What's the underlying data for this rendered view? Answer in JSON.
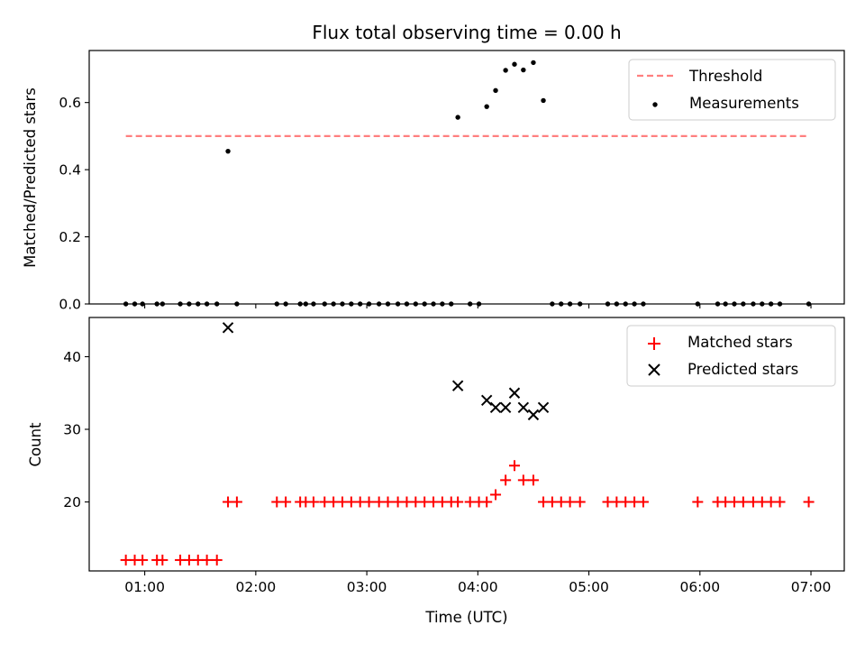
{
  "title": "Flux total observing time = 0.00 h",
  "chart_data": [
    {
      "type": "scatter",
      "ylabel": "Matched/Predicted stars",
      "xlim": [
        0.5,
        7.3
      ],
      "ylim": [
        0.0,
        0.755
      ],
      "xticks": [
        1,
        2,
        3,
        4,
        5,
        6,
        7
      ],
      "yticks": [
        0.0,
        0.2,
        0.4,
        0.6
      ],
      "ytick_labels": [
        "0.0",
        "0.2",
        "0.4",
        "0.6"
      ],
      "legend_position": "top-right",
      "threshold": {
        "name": "Threshold",
        "y": 0.5,
        "x_range": [
          0.83,
          6.97
        ],
        "color": "#ff7f7f"
      },
      "measurements": {
        "name": "Measurements",
        "color": "#000000",
        "x": [
          0.83,
          0.91,
          0.98,
          1.11,
          1.16,
          1.32,
          1.4,
          1.48,
          1.56,
          1.65,
          1.75,
          1.83,
          2.19,
          2.27,
          2.4,
          2.45,
          2.52,
          2.62,
          2.7,
          2.78,
          2.86,
          2.94,
          3.02,
          3.11,
          3.19,
          3.28,
          3.36,
          3.44,
          3.52,
          3.6,
          3.68,
          3.76,
          3.82,
          3.93,
          4.01,
          4.08,
          4.16,
          4.25,
          4.33,
          4.41,
          4.5,
          4.59,
          4.67,
          4.75,
          4.83,
          4.92,
          5.17,
          5.25,
          5.33,
          5.41,
          5.49,
          5.98,
          6.16,
          6.23,
          6.31,
          6.39,
          6.48,
          6.56,
          6.64,
          6.72,
          6.98
        ],
        "y": [
          0,
          0,
          0,
          0,
          0,
          0,
          0,
          0,
          0,
          0,
          0.455,
          0,
          0,
          0,
          0,
          0,
          0,
          0,
          0,
          0,
          0,
          0,
          0,
          0,
          0,
          0,
          0,
          0,
          0,
          0,
          0,
          0,
          0.556,
          0,
          0,
          0.588,
          0.636,
          0.696,
          0.714,
          0.697,
          0.719,
          0.606,
          0,
          0,
          0,
          0,
          0,
          0,
          0,
          0,
          0,
          0,
          0,
          0,
          0,
          0,
          0,
          0,
          0,
          0,
          0
        ]
      }
    },
    {
      "type": "scatter",
      "xlabel": "Time (UTC)",
      "ylabel": "Count",
      "xlim": [
        0.5,
        7.3
      ],
      "ylim": [
        10.5,
        45.4
      ],
      "xticks": [
        1,
        2,
        3,
        4,
        5,
        6,
        7
      ],
      "xtick_labels": [
        "01:00",
        "02:00",
        "03:00",
        "04:00",
        "05:00",
        "06:00",
        "07:00"
      ],
      "yticks": [
        20,
        30,
        40
      ],
      "ytick_labels": [
        "20",
        "30",
        "40"
      ],
      "legend_position": "top-right",
      "series": [
        {
          "name": "Matched stars",
          "marker": "plus",
          "color": "#ff0000",
          "x": [
            0.83,
            0.91,
            0.98,
            1.11,
            1.16,
            1.32,
            1.4,
            1.48,
            1.56,
            1.65,
            1.75,
            1.83,
            2.19,
            2.27,
            2.4,
            2.45,
            2.52,
            2.62,
            2.7,
            2.78,
            2.86,
            2.94,
            3.02,
            3.11,
            3.19,
            3.28,
            3.36,
            3.44,
            3.52,
            3.6,
            3.68,
            3.76,
            3.82,
            3.93,
            4.01,
            4.08,
            4.16,
            4.25,
            4.33,
            4.41,
            4.5,
            4.59,
            4.67,
            4.75,
            4.83,
            4.92,
            5.17,
            5.25,
            5.33,
            5.41,
            5.49,
            5.98,
            6.16,
            6.23,
            6.31,
            6.39,
            6.48,
            6.56,
            6.64,
            6.72,
            6.98
          ],
          "y": [
            12,
            12,
            12,
            12,
            12,
            12,
            12,
            12,
            12,
            12,
            20,
            20,
            20,
            20,
            20,
            20,
            20,
            20,
            20,
            20,
            20,
            20,
            20,
            20,
            20,
            20,
            20,
            20,
            20,
            20,
            20,
            20,
            20,
            20,
            20,
            20,
            21,
            23,
            25,
            23,
            23,
            20,
            20,
            20,
            20,
            20,
            20,
            20,
            20,
            20,
            20,
            20,
            20,
            20,
            20,
            20,
            20,
            20,
            20,
            20,
            20
          ]
        },
        {
          "name": "Predicted stars",
          "marker": "x",
          "color": "#000000",
          "x": [
            1.75,
            3.82,
            4.08,
            4.16,
            4.25,
            4.33,
            4.41,
            4.5,
            4.59
          ],
          "y": [
            44,
            36,
            34,
            33,
            33,
            35,
            33,
            32,
            33
          ]
        }
      ]
    }
  ]
}
